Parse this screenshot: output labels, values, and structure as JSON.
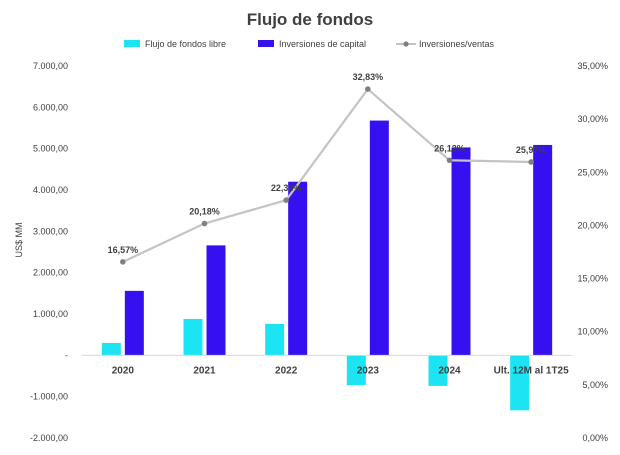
{
  "chart_data": {
    "type": "bar",
    "title": "Flujo de fondos",
    "ylabel": "US$ MM",
    "y2label": "",
    "categories": [
      "2020",
      "2021",
      "2022",
      "2023",
      "2024",
      "Ult. 12M al 1T25"
    ],
    "ylim": [
      -2000,
      7000
    ],
    "y2lim": [
      0,
      35
    ],
    "y_ticks": [
      -2000,
      -1000,
      0,
      1000,
      2000,
      3000,
      4000,
      5000,
      6000,
      7000
    ],
    "y_tick_labels": [
      "-2.000,00",
      "-1.000,00",
      "-",
      "1.000,00",
      "2.000,00",
      "3.000,00",
      "4.000,00",
      "5.000,00",
      "6.000,00",
      "7.000,00"
    ],
    "y2_ticks": [
      0,
      5,
      10,
      15,
      20,
      25,
      30,
      35
    ],
    "y2_tick_labels": [
      "0,00%",
      "5,00%",
      "10,00%",
      "15,00%",
      "20,00%",
      "25,00%",
      "30,00%",
      "35,00%"
    ],
    "legend_position": "top",
    "grid": false,
    "series": [
      {
        "name": "Flujo de fondos libre",
        "kind": "bar",
        "axis": "left",
        "color": "#1de4f3",
        "values": [
          300,
          880,
          760,
          -720,
          -740,
          -1330
        ]
      },
      {
        "name": "Inversiones de capital",
        "kind": "bar",
        "axis": "left",
        "color": "#3610f0",
        "values": [
          1560,
          2660,
          4200,
          5680,
          5030,
          5090
        ]
      },
      {
        "name": "Inversiones/ventas",
        "kind": "line",
        "axis": "right",
        "color": "#c4c4c4",
        "marker_color": "#808080",
        "values": [
          16.57,
          20.18,
          22.38,
          32.83,
          26.13,
          25.97
        ],
        "labels": [
          "16,57%",
          "20,18%",
          "22,38%",
          "32,83%",
          "26,13%",
          "25,97%"
        ]
      }
    ]
  }
}
